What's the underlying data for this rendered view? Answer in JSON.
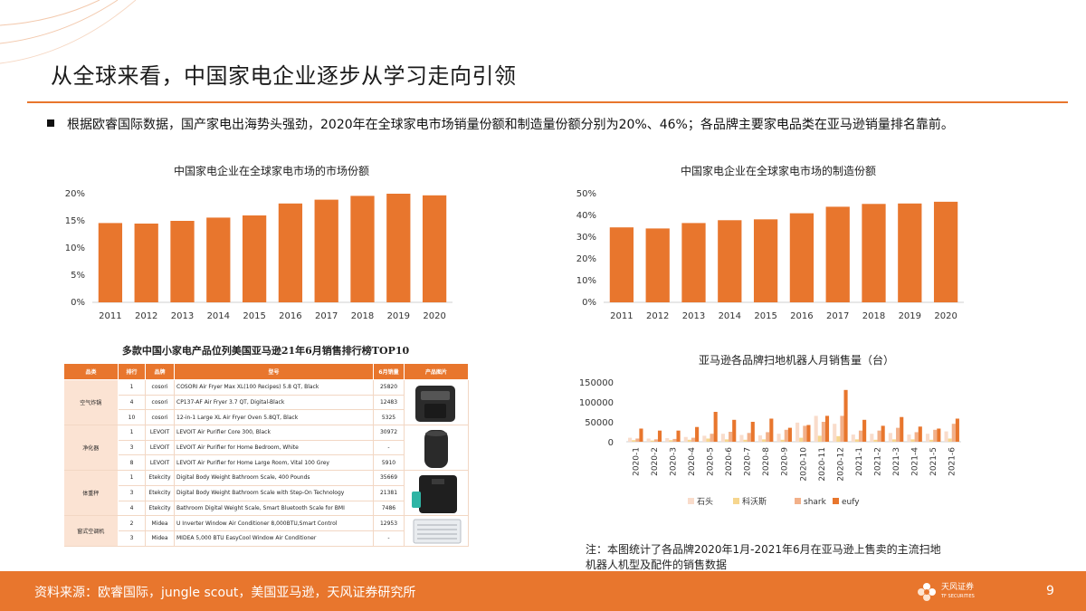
{
  "title": "从全球来看，中国家电企业逐步从学习走向引领",
  "bullet": "根据欧睿国际数据，国产家电出海势头强劲，2020年在全球家电市场销量份额和制造量份额分别为20%、46%；各品牌主要家电品类在亚马逊销量排名靠前。",
  "chart_data": [
    {
      "type": "bar",
      "title": "中国家电企业在全球家电市场的市场份额",
      "categories": [
        "2011",
        "2012",
        "2013",
        "2014",
        "2015",
        "2016",
        "2017",
        "2018",
        "2019",
        "2020"
      ],
      "values": [
        14.6,
        14.5,
        15.0,
        15.6,
        16.0,
        18.2,
        18.9,
        19.6,
        20.0,
        19.7
      ],
      "yticks": [
        "0%",
        "5%",
        "10%",
        "15%",
        "20%"
      ],
      "ylim": [
        0,
        20
      ],
      "color": "#e8762d"
    },
    {
      "type": "bar",
      "title": "中国家电企业在全球家电市场的制造份额",
      "categories": [
        "2011",
        "2012",
        "2013",
        "2014",
        "2015",
        "2016",
        "2017",
        "2018",
        "2019",
        "2020"
      ],
      "values": [
        34.5,
        34.0,
        36.5,
        37.8,
        38.2,
        41.0,
        44.0,
        45.3,
        45.5,
        46.3
      ],
      "yticks": [
        "0%",
        "10%",
        "20%",
        "30%",
        "40%",
        "50%"
      ],
      "ylim": [
        0,
        50
      ],
      "color": "#e8762d"
    },
    {
      "type": "bar",
      "title": "亚马逊各品牌扫地机器人月销售量（台）",
      "categories": [
        "2020-1",
        "2020-2",
        "2020-3",
        "2020-4",
        "2020-5",
        "2020-6",
        "2020-7",
        "2020-8",
        "2020-9",
        "2020-10",
        "2020-11",
        "2020-12",
        "2021-1",
        "2021-2",
        "2021-3",
        "2021-4",
        "2021-5",
        "2021-6"
      ],
      "yticks": [
        "0",
        "50000",
        "100000",
        "150000"
      ],
      "ylim": [
        0,
        150000
      ],
      "series": [
        {
          "name": "石头",
          "color": "#f9dccb",
          "values": [
            10000,
            8000,
            9000,
            12000,
            15000,
            20000,
            17000,
            16000,
            20000,
            48000,
            65000,
            45000,
            18000,
            20000,
            22000,
            18000,
            20000,
            26000
          ]
        },
        {
          "name": "科沃斯",
          "color": "#f6d68e",
          "values": [
            4000,
            3000,
            4000,
            5000,
            8000,
            6000,
            5000,
            6000,
            5000,
            10000,
            15000,
            14000,
            6000,
            5000,
            6000,
            6000,
            5000,
            8000
          ]
        },
        {
          "name": "shark",
          "color": "#f2b089",
          "values": [
            8000,
            6000,
            7000,
            10000,
            20000,
            25000,
            22000,
            24000,
            30000,
            40000,
            50000,
            65000,
            28000,
            28000,
            35000,
            24000,
            30000,
            45000
          ]
        },
        {
          "name": "eufy",
          "color": "#e8762d",
          "values": [
            33000,
            28000,
            28000,
            37000,
            75000,
            55000,
            50000,
            58000,
            35000,
            42000,
            65000,
            130000,
            55000,
            40000,
            62000,
            38000,
            33000,
            58000
          ]
        }
      ]
    }
  ],
  "table": {
    "title": "多款中国小家电产品位列美国亚马逊21年6月销售排行榜TOP10",
    "headers": [
      "品类",
      "排行",
      "品牌",
      "型号",
      "6月销量",
      "产品图片"
    ],
    "groups": [
      {
        "category": "空气炸锅",
        "rows": [
          {
            "rank": "1",
            "brand": "cosori",
            "model": "COSORI Air Fryer Max XL(100 Recipes) 5.8 QT, Black",
            "sales": "25820"
          },
          {
            "rank": "4",
            "brand": "cosori",
            "model": "CP137-AF Air Fryer 3.7 QT, Digital-Black",
            "sales": "12483"
          },
          {
            "rank": "10",
            "brand": "cosori",
            "model": "12-in-1 Large XL Air Fryer Oven 5.8QT, Black",
            "sales": "5325"
          }
        ]
      },
      {
        "category": "净化器",
        "rows": [
          {
            "rank": "1",
            "brand": "LEVOIT",
            "model": "LEVOIT Air Purifier Core 300, Black",
            "sales": "30972"
          },
          {
            "rank": "3",
            "brand": "LEVOIT",
            "model": "LEVOIT Air Purifier for Home Bedroom, White",
            "sales": "-"
          },
          {
            "rank": "8",
            "brand": "LEVOIT",
            "model": "LEVOIT Air Purifier for Home Large Room, Vital 100 Grey",
            "sales": "5910"
          }
        ]
      },
      {
        "category": "体重秤",
        "rows": [
          {
            "rank": "1",
            "brand": "Etekcity",
            "model": "Digital Body Weight Bathroom Scale, 400 Pounds",
            "sales": "35669"
          },
          {
            "rank": "3",
            "brand": "Etekcity",
            "model": "Digital Body Weight Bathroom Scale with Step-On Technology",
            "sales": "21381"
          },
          {
            "rank": "4",
            "brand": "Etekcity",
            "model": "Bathroom Digital Weight Scale, Smart Bluetooth Scale for BMI",
            "sales": "7486"
          }
        ]
      },
      {
        "category": "窗式空调机",
        "rows": [
          {
            "rank": "2",
            "brand": "Midea",
            "model": "U Inverter Window Air Conditioner 8,000BTU,Smart Control",
            "sales": "12953"
          },
          {
            "rank": "3",
            "brand": "Midea",
            "model": "MIDEA 5,000 BTU EasyCool Window Air Conditioner",
            "sales": "-"
          }
        ]
      }
    ]
  },
  "note": [
    "注：本图统计了各品牌2020年1月-2021年6月在亚马逊上售卖的主流扫地",
    "机器人机型及配件的销售数据"
  ],
  "footer": {
    "source": "资料来源：欧睿国际，jungle scout，美国亚马逊，天风证券研究所",
    "logo_text": "天风证券",
    "logo_sub": "TF SECURITIES",
    "page": "9"
  }
}
